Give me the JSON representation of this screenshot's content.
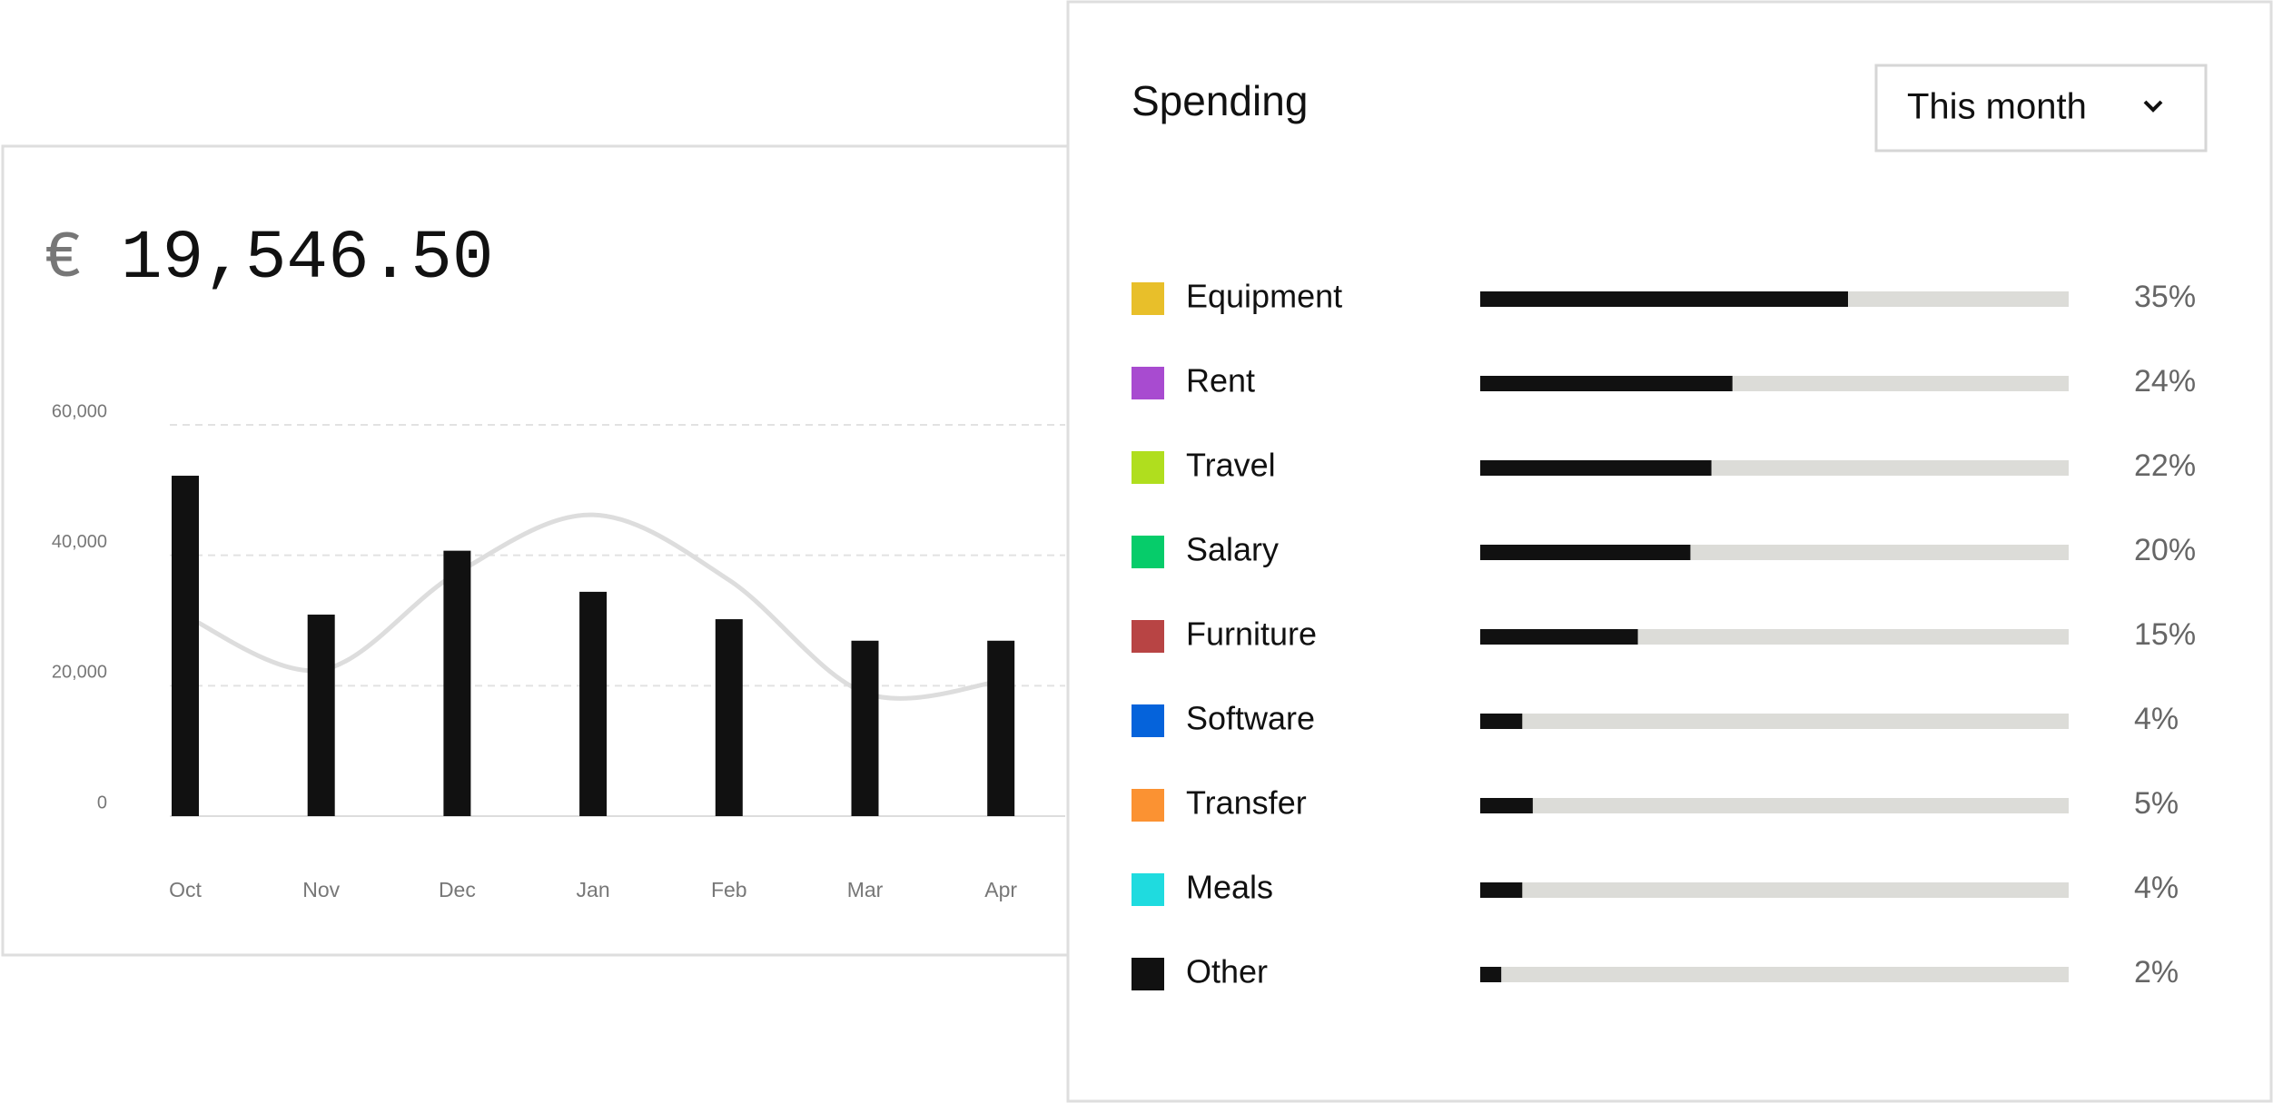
{
  "balance": {
    "currency": "€",
    "amount": "19,546.50"
  },
  "chart_data": [
    {
      "type": "bar",
      "categories": [
        "Oct",
        "Nov",
        "Dec",
        "Jan",
        "Feb",
        "Mar",
        "Apr"
      ],
      "series": [
        {
          "color": "#111111",
          "values": [
            52200,
            30900,
            40700,
            34400,
            30200,
            26900,
            26900
          ]
        },
        {
          "type": "line",
          "color": "#dddddd",
          "values": [
            30700,
            22400,
            37300,
            46200,
            36200,
            18900,
            20700
          ]
        }
      ],
      "ylim": [
        0,
        60000
      ],
      "yticks": [
        0,
        {
          "value": 20000,
          "label": "20,000"
        },
        {
          "value": 40000,
          "label": "40,000"
        },
        {
          "value": 60000,
          "label": "60,000"
        }
      ],
      "grid": true
    },
    {
      "type": "hbar",
      "title": "Spending",
      "period": "This month",
      "categories": [
        "Equipment",
        "Rent",
        "Travel",
        "Salary",
        "Furniture",
        "Software",
        "Transfer",
        "Meals",
        "Other"
      ],
      "colors": [
        "#e8bf2a",
        "#a84bd0",
        "#b0de1e",
        "#06cc6a",
        "#b84444",
        "#0563db",
        "#fb9232",
        "#1fdbdf",
        "#111111"
      ],
      "values": [
        35,
        24,
        22,
        20,
        15,
        4,
        5,
        4,
        2
      ],
      "value_labels": [
        "35%",
        "24%",
        "22%",
        "20%",
        "15%",
        "4%",
        "5%",
        "4%",
        "2%"
      ],
      "xlim": [
        0,
        56
      ],
      "bar_color": "#111111",
      "track_color": "#dcdcd8"
    }
  ]
}
